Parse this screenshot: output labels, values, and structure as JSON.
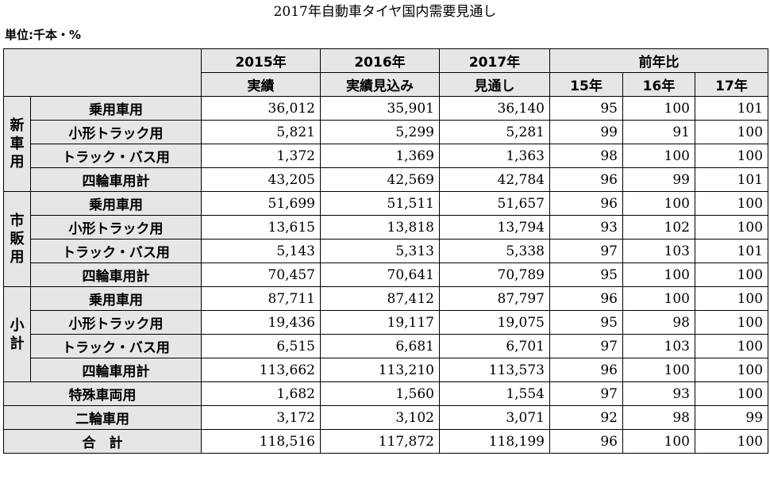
{
  "title": "2017年自動車タイヤ国内需要見通し",
  "unit": "単位:千本・%",
  "header": {
    "y2015": "2015年",
    "y2016": "2016年",
    "y2017": "2017年",
    "ratio": "前年比",
    "actual": "実績",
    "estimate": "実績見込み",
    "forecast": "見通し",
    "r15": "15年",
    "r16": "16年",
    "r17": "17年"
  },
  "groups": [
    {
      "label": "新車用",
      "rows": [
        {
          "label": "乗用車用",
          "v2015": "36,012",
          "v2016": "35,901",
          "v2017": "36,140",
          "r15": "95",
          "r16": "100",
          "r17": "101"
        },
        {
          "label": "小形トラック用",
          "v2015": "5,821",
          "v2016": "5,299",
          "v2017": "5,281",
          "r15": "99",
          "r16": "91",
          "r17": "100"
        },
        {
          "label": "トラック・バス用",
          "v2015": "1,372",
          "v2016": "1,369",
          "v2017": "1,363",
          "r15": "98",
          "r16": "100",
          "r17": "100"
        },
        {
          "label": "四輪車用計",
          "v2015": "43,205",
          "v2016": "42,569",
          "v2017": "42,784",
          "r15": "96",
          "r16": "99",
          "r17": "101"
        }
      ]
    },
    {
      "label": "市販用",
      "rows": [
        {
          "label": "乗用車用",
          "v2015": "51,699",
          "v2016": "51,511",
          "v2017": "51,657",
          "r15": "96",
          "r16": "100",
          "r17": "100"
        },
        {
          "label": "小形トラック用",
          "v2015": "13,615",
          "v2016": "13,818",
          "v2017": "13,794",
          "r15": "93",
          "r16": "102",
          "r17": "100"
        },
        {
          "label": "トラック・バス用",
          "v2015": "5,143",
          "v2016": "5,313",
          "v2017": "5,338",
          "r15": "97",
          "r16": "103",
          "r17": "101"
        },
        {
          "label": "四輪車用計",
          "v2015": "70,457",
          "v2016": "70,641",
          "v2017": "70,789",
          "r15": "95",
          "r16": "100",
          "r17": "100"
        }
      ]
    },
    {
      "label": "小計",
      "rows": [
        {
          "label": "乗用車用",
          "v2015": "87,711",
          "v2016": "87,412",
          "v2017": "87,797",
          "r15": "96",
          "r16": "100",
          "r17": "100"
        },
        {
          "label": "小形トラック用",
          "v2015": "19,436",
          "v2016": "19,117",
          "v2017": "19,075",
          "r15": "95",
          "r16": "98",
          "r17": "100"
        },
        {
          "label": "トラック・バス用",
          "v2015": "6,515",
          "v2016": "6,681",
          "v2017": "6,701",
          "r15": "97",
          "r16": "103",
          "r17": "100"
        },
        {
          "label": "四輪車用計",
          "v2015": "113,662",
          "v2016": "113,210",
          "v2017": "113,573",
          "r15": "96",
          "r16": "100",
          "r17": "100"
        }
      ]
    }
  ],
  "extra_rows": [
    {
      "label": "特殊車両用",
      "v2015": "1,682",
      "v2016": "1,560",
      "v2017": "1,554",
      "r15": "97",
      "r16": "93",
      "r17": "100"
    },
    {
      "label": "二輪車用",
      "v2015": "3,172",
      "v2016": "3,102",
      "v2017": "3,071",
      "r15": "92",
      "r16": "98",
      "r17": "99"
    },
    {
      "label": "合　計",
      "v2015": "118,516",
      "v2016": "117,872",
      "v2017": "118,199",
      "r15": "96",
      "r16": "100",
      "r17": "100"
    }
  ]
}
